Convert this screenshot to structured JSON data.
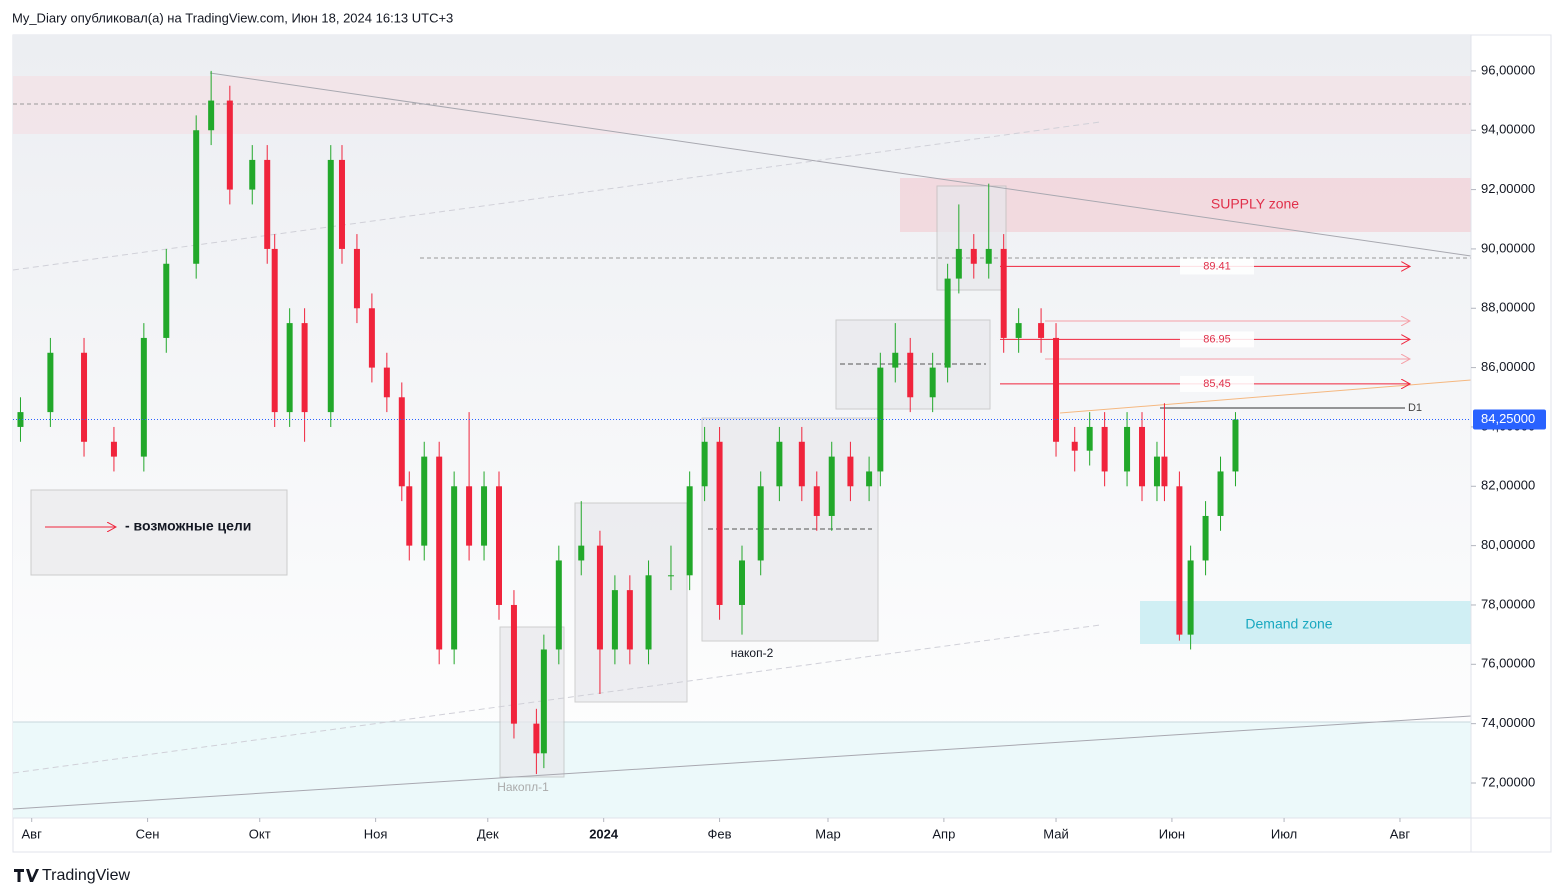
{
  "header": {
    "byline": "My_Diary опубликовал(а) на TradingView.com, Июн 18, 2024 16:13 UTC+3"
  },
  "chart_data": {
    "type": "candlestick",
    "x": [
      -3,
      5,
      14,
      22,
      30,
      36,
      44,
      48,
      53,
      59,
      63,
      65,
      69,
      73,
      80,
      83,
      87,
      91,
      95,
      99,
      101,
      105,
      109,
      113,
      117,
      121,
      125,
      129,
      135,
      137,
      141,
      147,
      152,
      156,
      160,
      165,
      171,
      176,
      180,
      184,
      190,
      195,
      200,
      206,
      210,
      214,
      219,
      224,
      227,
      231,
      235,
      241,
      245,
      248,
      252,
      256,
      260,
      264,
      270,
      274,
      279,
      283,
      287,
      293,
      297,
      301,
      303,
      307,
      310,
      314,
      318,
      322
    ],
    "open": [
      84,
      84.5,
      86.5,
      83.5,
      83,
      87,
      89.5,
      94,
      95,
      92,
      93,
      90,
      84.5,
      87.5,
      84.5,
      93,
      90,
      88,
      86,
      85,
      82,
      80,
      83,
      76.5,
      82,
      80,
      82,
      78,
      74,
      73,
      76.5,
      79.5,
      80,
      76.5,
      78.5,
      76.5,
      79,
      79,
      82,
      83.5,
      78,
      79.5,
      82,
      83.5,
      82,
      81,
      83,
      82,
      82.5,
      86,
      86.5,
      85,
      86,
      89,
      90,
      89.5,
      90,
      87,
      87.5,
      87,
      83.5,
      83.2,
      84,
      82.5,
      84,
      82,
      83,
      82,
      77,
      79.5,
      81,
      82.5
    ],
    "high": [
      85,
      87,
      87,
      84,
      87.5,
      90,
      94.5,
      96,
      95.5,
      93.5,
      93.5,
      90.5,
      88,
      88,
      93.5,
      93.5,
      90.5,
      88.5,
      86.5,
      85.5,
      82.5,
      83.5,
      83.5,
      82.5,
      84.5,
      82.5,
      82.5,
      78.5,
      74.5,
      77,
      80,
      81.5,
      80.5,
      79,
      79,
      79.5,
      80,
      82.5,
      84,
      84,
      80,
      82.5,
      84,
      84,
      82.5,
      83.5,
      83.5,
      83,
      86.5,
      87.5,
      87,
      86.5,
      89.5,
      91.5,
      90.5,
      92.2,
      90.5,
      88,
      88,
      87.5,
      84,
      84.5,
      84.5,
      84.5,
      84.5,
      83.5,
      84.8,
      82.5,
      80,
      81.5,
      83,
      84.5
    ],
    "low": [
      83.5,
      84,
      83,
      82.5,
      82.5,
      86.5,
      89,
      93.5,
      91.5,
      91.5,
      89.5,
      84,
      84,
      83.5,
      84,
      89.5,
      87.5,
      85.5,
      84.5,
      81.5,
      79.5,
      79.5,
      76,
      76,
      79.5,
      79.5,
      77.5,
      73.5,
      72.3,
      72.5,
      76,
      79,
      75,
      76,
      76,
      76,
      78.5,
      78.5,
      81.5,
      77.5,
      77,
      79,
      81.5,
      81.5,
      80.5,
      80.5,
      81.5,
      81.5,
      82,
      85.5,
      84.5,
      84.5,
      85.5,
      88.5,
      89,
      89,
      86.5,
      86.5,
      86.5,
      83,
      82.5,
      82.7,
      82,
      82,
      81.5,
      81.5,
      81.5,
      76.8,
      76.5,
      79,
      80.5,
      82
    ],
    "close": [
      84.5,
      86.5,
      83.5,
      83,
      87,
      89.5,
      94,
      95,
      92,
      93,
      90,
      84.5,
      87.5,
      84.5,
      93,
      90,
      88,
      86,
      85,
      82,
      80,
      83,
      76.5,
      82,
      80,
      82,
      78,
      74,
      73,
      76.5,
      79.5,
      80,
      76.5,
      78.5,
      76.5,
      79,
      79,
      82,
      83.5,
      78,
      79.5,
      82,
      83.5,
      82,
      81,
      83,
      82,
      82.5,
      86,
      86.5,
      85,
      86,
      89,
      90,
      89.5,
      90,
      87,
      87.5,
      87,
      83.5,
      83.2,
      84,
      82.5,
      84,
      82,
      83,
      82,
      77,
      79.5,
      81,
      82.5,
      84.25
    ],
    "up_color": "#22a82a",
    "down_color": "#f0243c",
    "xlim": [
      -5,
      385
    ],
    "xticks": [
      {
        "value": 0,
        "label": "Авг"
      },
      {
        "value": 31,
        "label": "Сен"
      },
      {
        "value": 61,
        "label": "Окт"
      },
      {
        "value": 92,
        "label": "Ноя"
      },
      {
        "value": 122,
        "label": "Дек"
      },
      {
        "value": 153,
        "label": "2024"
      },
      {
        "value": 184,
        "label": "Фев"
      },
      {
        "value": 213,
        "label": "Мар"
      },
      {
        "value": 244,
        "label": "Апр"
      },
      {
        "value": 274,
        "label": "Май"
      },
      {
        "value": 305,
        "label": "Июн"
      },
      {
        "value": 335,
        "label": "Июл"
      },
      {
        "value": 366,
        "label": "Авг"
      }
    ],
    "ylim": [
      70.82,
      97.21
    ],
    "yticks": [
      {
        "value": 72,
        "label": "72,00000"
      },
      {
        "value": 74,
        "label": "74,00000"
      },
      {
        "value": 76,
        "label": "76,00000"
      },
      {
        "value": 78,
        "label": "78,00000"
      },
      {
        "value": 80,
        "label": "80,00000"
      },
      {
        "value": 82,
        "label": "82,00000"
      },
      {
        "value": 84,
        "label": "84,00000"
      },
      {
        "value": 86,
        "label": "86,00000"
      },
      {
        "value": 88,
        "label": "88,00000"
      },
      {
        "value": 90,
        "label": "90,00000"
      },
      {
        "value": 92,
        "label": "92,00000"
      },
      {
        "value": 94,
        "label": "94,00000"
      },
      {
        "value": 96,
        "label": "96,00000"
      }
    ],
    "last_price": {
      "value": 84.25,
      "label": "84,25000"
    },
    "targets": [
      {
        "value": 89.41,
        "label": "89.41"
      },
      {
        "value": 86.95,
        "label": "86.95"
      },
      {
        "value": 85.45,
        "label": "85,45"
      }
    ],
    "annotations": {
      "supply": "SUPPLY zone",
      "demand": "Demand zone",
      "timeframe": "D1",
      "acc1": "Накопл-1",
      "acc2": "накоп-2",
      "legend": "- возможные цели"
    }
  },
  "footer": {
    "brand": "TradingView"
  }
}
